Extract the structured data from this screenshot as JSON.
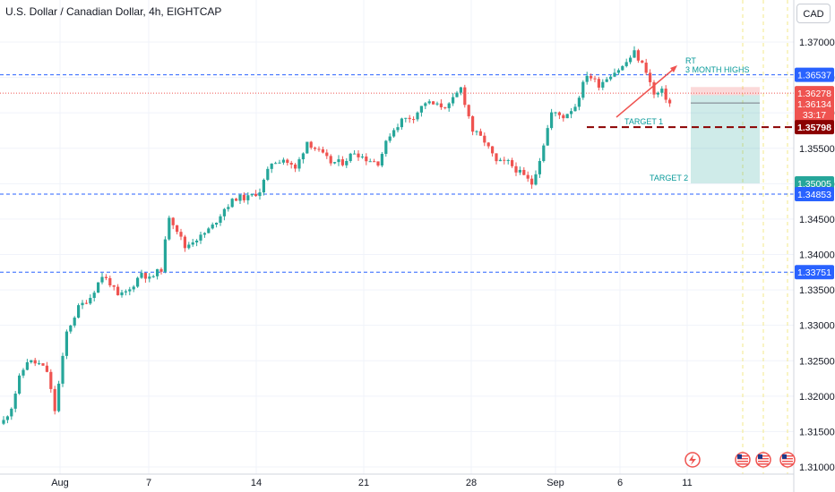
{
  "header": {
    "title": "U.S. Dollar / Canadian Dollar, 4h, EIGHTCAP",
    "currency_button": "CAD"
  },
  "colors": {
    "up": "#26a69a",
    "down": "#ef5350",
    "level_line": "#2962ff",
    "target_line": "#8b0000",
    "annotation_text": "#089a9a"
  },
  "annotations": {
    "rt_label": "RT",
    "highs_label": "3 MONTH HIGHS",
    "target1_label": "TARGET 1",
    "target2_label": "TARGET 2"
  },
  "price_labels": {
    "level_high": "1.36537",
    "price_a": "1.36278",
    "price_b": "1.36134",
    "countdown": "33:17",
    "target1_price": "1.35798",
    "target2_price": "1.35005",
    "level_mid": "1.34853",
    "level_low": "1.33751"
  },
  "chart_data": {
    "type": "candlestick",
    "symbol": "USDCAD",
    "timeframe": "4h",
    "y_ticks": [
      "1.37000",
      "1.36500",
      "1.36000",
      "1.35500",
      "1.35000",
      "1.34500",
      "1.34000",
      "1.33500",
      "1.33000",
      "1.32500",
      "1.32000",
      "1.31500",
      "1.31000"
    ],
    "ylim": [
      1.31,
      1.37
    ],
    "x_ticks": [
      "Aug",
      "7",
      "14",
      "21",
      "28",
      "Sep",
      "6",
      "11"
    ],
    "horizontal_levels": [
      1.36537,
      1.34853,
      1.33751
    ],
    "target1": 1.35798,
    "target2": 1.35005,
    "last_price": 1.36134,
    "close_path": [
      {
        "t": 0,
        "v": 1.3165
      },
      {
        "t": 2,
        "v": 1.3185
      },
      {
        "t": 4,
        "v": 1.3225
      },
      {
        "t": 6,
        "v": 1.325
      },
      {
        "t": 9,
        "v": 1.3245
      },
      {
        "t": 11,
        "v": 1.3235
      },
      {
        "t": 13,
        "v": 1.318
      },
      {
        "t": 16,
        "v": 1.329
      },
      {
        "t": 19,
        "v": 1.3325
      },
      {
        "t": 22,
        "v": 1.334
      },
      {
        "t": 25,
        "v": 1.337
      },
      {
        "t": 27,
        "v": 1.336
      },
      {
        "t": 29,
        "v": 1.334
      },
      {
        "t": 32,
        "v": 1.335
      },
      {
        "t": 35,
        "v": 1.3375
      },
      {
        "t": 37,
        "v": 1.3365
      },
      {
        "t": 40,
        "v": 1.338
      },
      {
        "t": 42,
        "v": 1.3455
      },
      {
        "t": 44,
        "v": 1.3435
      },
      {
        "t": 46,
        "v": 1.341
      },
      {
        "t": 48,
        "v": 1.342
      },
      {
        "t": 50,
        "v": 1.3425
      },
      {
        "t": 53,
        "v": 1.344
      },
      {
        "t": 56,
        "v": 1.3465
      },
      {
        "t": 59,
        "v": 1.348
      },
      {
        "t": 62,
        "v": 1.348
      },
      {
        "t": 65,
        "v": 1.349
      },
      {
        "t": 68,
        "v": 1.353
      },
      {
        "t": 71,
        "v": 1.3535
      },
      {
        "t": 74,
        "v": 1.352
      },
      {
        "t": 77,
        "v": 1.356
      },
      {
        "t": 80,
        "v": 1.3545
      },
      {
        "t": 83,
        "v": 1.353
      },
      {
        "t": 86,
        "v": 1.353
      },
      {
        "t": 89,
        "v": 1.3545
      },
      {
        "t": 92,
        "v": 1.3535
      },
      {
        "t": 95,
        "v": 1.353
      },
      {
        "t": 98,
        "v": 1.357
      },
      {
        "t": 101,
        "v": 1.359
      },
      {
        "t": 104,
        "v": 1.3595
      },
      {
        "t": 107,
        "v": 1.3615
      },
      {
        "t": 110,
        "v": 1.361
      },
      {
        "t": 113,
        "v": 1.361
      },
      {
        "t": 116,
        "v": 1.3635
      },
      {
        "t": 119,
        "v": 1.3575
      },
      {
        "t": 122,
        "v": 1.356
      },
      {
        "t": 125,
        "v": 1.353
      },
      {
        "t": 128,
        "v": 1.353
      },
      {
        "t": 131,
        "v": 1.3515
      },
      {
        "t": 134,
        "v": 1.35
      },
      {
        "t": 136,
        "v": 1.3535
      },
      {
        "t": 139,
        "v": 1.36
      },
      {
        "t": 142,
        "v": 1.3595
      },
      {
        "t": 145,
        "v": 1.361
      },
      {
        "t": 148,
        "v": 1.3655
      },
      {
        "t": 151,
        "v": 1.364
      },
      {
        "t": 154,
        "v": 1.3655
      },
      {
        "t": 157,
        "v": 1.3665
      },
      {
        "t": 160,
        "v": 1.3685
      },
      {
        "t": 163,
        "v": 1.366
      },
      {
        "t": 165,
        "v": 1.3625
      },
      {
        "t": 167,
        "v": 1.363
      },
      {
        "t": 169,
        "v": 1.36134
      }
    ]
  }
}
